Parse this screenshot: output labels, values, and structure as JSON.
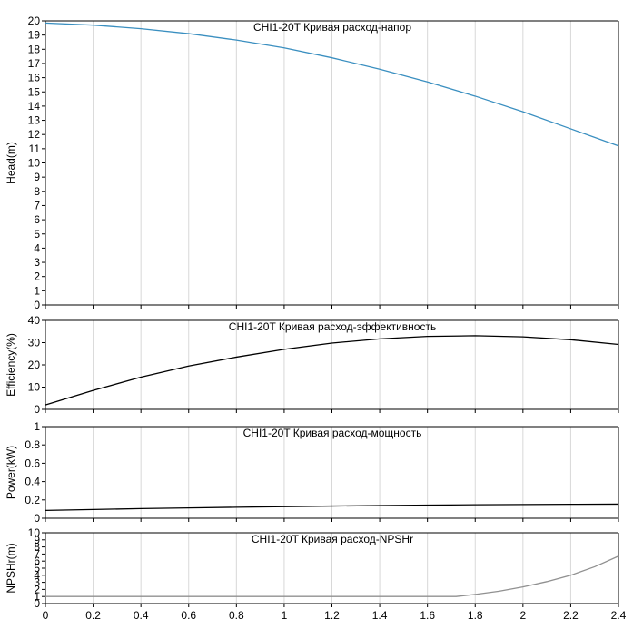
{
  "chart_data": [
    {
      "type": "line",
      "title": "CHI1-20T Кривая расход-напор",
      "xlabel": "",
      "ylabel": "Head(m)",
      "xlim": [
        0,
        2.4
      ],
      "ylim": [
        0,
        20
      ],
      "yticks": [
        0,
        1,
        2,
        3,
        4,
        5,
        6,
        7,
        8,
        9,
        10,
        11,
        12,
        13,
        14,
        15,
        16,
        17,
        18,
        19,
        20
      ],
      "grid": "vertical",
      "color": "#3a8fc0",
      "series": [
        {
          "x": [
            0,
            0.2,
            0.4,
            0.6,
            0.8,
            1.0,
            1.2,
            1.4,
            1.6,
            1.8,
            2.0,
            2.2,
            2.4
          ],
          "y": [
            19.85,
            19.7,
            19.45,
            19.1,
            18.65,
            18.1,
            17.4,
            16.6,
            15.7,
            14.7,
            13.6,
            12.4,
            11.2
          ]
        }
      ]
    },
    {
      "type": "line",
      "title": "CHI1-20T Кривая расход-эффективность",
      "xlabel": "",
      "ylabel": "Efficiency(%)",
      "xlim": [
        0,
        2.4
      ],
      "ylim": [
        0,
        40
      ],
      "yticks": [
        0,
        10,
        20,
        30,
        40
      ],
      "grid": "vertical",
      "color": "#000000",
      "series": [
        {
          "x": [
            0,
            0.2,
            0.4,
            0.6,
            0.8,
            1.0,
            1.2,
            1.4,
            1.6,
            1.8,
            2.0,
            2.2,
            2.4
          ],
          "y": [
            2,
            8.5,
            14.5,
            19.5,
            23.5,
            27,
            29.8,
            31.7,
            32.8,
            33.1,
            32.6,
            31.3,
            29.2
          ]
        }
      ]
    },
    {
      "type": "line",
      "title": "CHI1-20T Кривая расход-мощность",
      "xlabel": "",
      "ylabel": "Power(kW)",
      "xlim": [
        0,
        2.4
      ],
      "ylim": [
        0,
        1
      ],
      "yticks": [
        "0",
        "0.2",
        "0.4",
        "0.6",
        "0.8",
        "1"
      ],
      "grid": "vertical",
      "color": "#000000",
      "series": [
        {
          "x": [
            0,
            0.2,
            0.4,
            0.6,
            0.8,
            1.0,
            1.2,
            1.4,
            1.6,
            1.8,
            2.0,
            2.2,
            2.4
          ],
          "y": [
            0.085,
            0.095,
            0.105,
            0.113,
            0.12,
            0.127,
            0.133,
            0.138,
            0.143,
            0.147,
            0.15,
            0.152,
            0.154
          ]
        }
      ]
    },
    {
      "type": "line",
      "title": "CHI1-20T Кривая расход-NPSHr",
      "xlabel": "",
      "ylabel": "NPSHr(m)",
      "xlim": [
        0,
        2.4
      ],
      "ylim": [
        0,
        10
      ],
      "yticks": [
        0,
        1,
        2,
        3,
        4,
        5,
        6,
        7,
        8,
        9,
        10
      ],
      "xticks": [
        "0",
        "0.2",
        "0.4",
        "0.6",
        "0.8",
        "1",
        "1.2",
        "1.4",
        "1.6",
        "1.8",
        "2",
        "2.2",
        "2.4"
      ],
      "grid": "vertical",
      "color": "#909090",
      "series": [
        {
          "x": [
            0,
            0.4,
            0.8,
            1.2,
            1.6,
            1.72,
            1.8,
            1.9,
            2.0,
            2.1,
            2.2,
            2.3,
            2.4
          ],
          "y": [
            1.0,
            1.0,
            1.0,
            1.0,
            1.0,
            1.0,
            1.3,
            1.75,
            2.35,
            3.1,
            4.0,
            5.2,
            6.7
          ]
        }
      ]
    }
  ]
}
